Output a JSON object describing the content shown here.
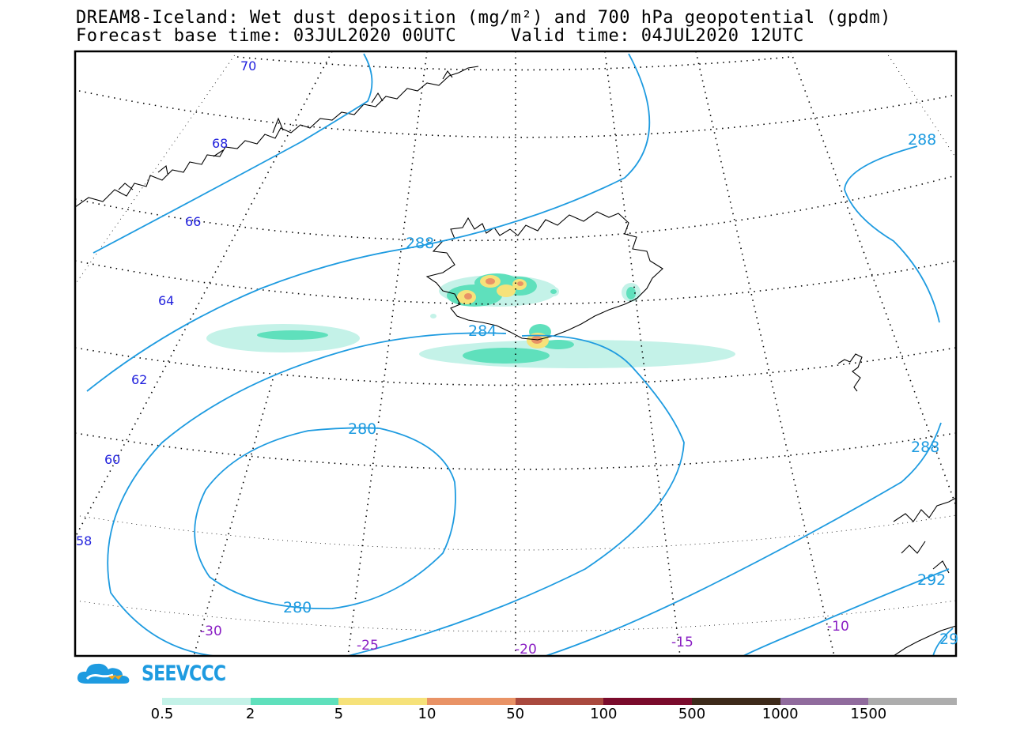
{
  "header": {
    "title_line1": "DREAM8-Iceland: Wet dust deposition (mg/m²) and 700 hPa geopotential (gpdm)",
    "title_line2": "Forecast base time: 03JUL2020 00UTC     Valid time: 04JUL2020 12UTC"
  },
  "map": {
    "latitude_labels": [
      "70",
      "68",
      "66",
      "64",
      "62",
      "60",
      "58"
    ],
    "longitude_labels": [
      "-30",
      "-25",
      "-20",
      "-15",
      "-10"
    ],
    "contour_labels": [
      "288",
      "288",
      "284",
      "280",
      "280",
      "288",
      "292",
      "29"
    ],
    "colors": {
      "contour": "#1e9be0",
      "latitude_text": "#2222dd",
      "longitude_text": "#8a1fc4",
      "coastline": "#000000"
    }
  },
  "logo": {
    "text": "SEEVCCC",
    "color": "#1e9be0"
  },
  "legend": {
    "swatches": [
      {
        "color": "#c4f2e8"
      },
      {
        "color": "#5fe0bc"
      },
      {
        "color": "#f6e27a"
      },
      {
        "color": "#e99366"
      },
      {
        "color": "#a9493e"
      },
      {
        "color": "#7a0b2c"
      },
      {
        "color": "#3d2a1a"
      },
      {
        "color": "#906b9d"
      },
      {
        "color": "#adadad"
      }
    ],
    "labels": [
      "0.5",
      "2",
      "5",
      "10",
      "50",
      "100",
      "500",
      "1000",
      "1500"
    ]
  }
}
